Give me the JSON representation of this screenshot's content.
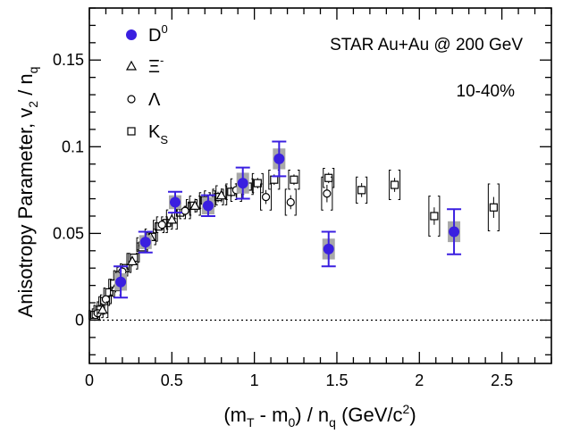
{
  "chart_data": {
    "type": "scatter",
    "xlabel": "(m_T - m_0) / n_q (GeV/c^2)",
    "ylabel": "Anisotropy Parameter, v_2 / n_q",
    "xlim": [
      0,
      2.8
    ],
    "ylim": [
      -0.025,
      0.18
    ],
    "x_ticks": [
      "0",
      "0.5",
      "1",
      "1.5",
      "2",
      "2.5"
    ],
    "y_ticks": [
      "0",
      "0.05",
      "0.1",
      "0.15"
    ],
    "grid": false,
    "zero_line": true,
    "annotations": [
      "STAR  Au+Au @ 200 GeV",
      "10-40%"
    ],
    "legend_position": "top-left",
    "series": [
      {
        "name": "D^0",
        "marker": "filled-circle",
        "color": "#3a1fe0",
        "points": [
          {
            "x": 0.19,
            "y": 0.022,
            "err": 0.009,
            "sys": 0.005
          },
          {
            "x": 0.34,
            "y": 0.045,
            "err": 0.006,
            "sys": 0.004
          },
          {
            "x": 0.52,
            "y": 0.068,
            "err": 0.006,
            "sys": 0.004
          },
          {
            "x": 0.72,
            "y": 0.066,
            "err": 0.006,
            "sys": 0.005
          },
          {
            "x": 0.93,
            "y": 0.079,
            "err": 0.009,
            "sys": 0.006
          },
          {
            "x": 1.15,
            "y": 0.093,
            "err": 0.01,
            "sys": 0.006
          },
          {
            "x": 1.45,
            "y": 0.041,
            "err": 0.01,
            "sys": 0.006
          },
          {
            "x": 2.21,
            "y": 0.051,
            "err": 0.013,
            "sys": 0.006
          }
        ]
      },
      {
        "name": "Ξ^-",
        "marker": "open-triangle",
        "color": "#000000",
        "points": [
          {
            "x": 0.08,
            "y": 0.006,
            "err": 0.002,
            "sys": 0.002
          },
          {
            "x": 0.16,
            "y": 0.019,
            "err": 0.002,
            "sys": 0.002
          },
          {
            "x": 0.26,
            "y": 0.034,
            "err": 0.002,
            "sys": 0.002
          },
          {
            "x": 0.37,
            "y": 0.048,
            "err": 0.002,
            "sys": 0.002
          },
          {
            "x": 0.5,
            "y": 0.058,
            "err": 0.003,
            "sys": 0.002
          },
          {
            "x": 0.64,
            "y": 0.066,
            "err": 0.003,
            "sys": 0.002
          },
          {
            "x": 0.8,
            "y": 0.072,
            "err": 0.003,
            "sys": 0.002
          }
        ]
      },
      {
        "name": "Λ",
        "marker": "open-circle",
        "color": "#000000",
        "points": [
          {
            "x": 0.05,
            "y": 0.004,
            "err": 0.001,
            "sys": 0.001
          },
          {
            "x": 0.1,
            "y": 0.012,
            "err": 0.001,
            "sys": 0.001
          },
          {
            "x": 0.2,
            "y": 0.028,
            "err": 0.001,
            "sys": 0.001
          },
          {
            "x": 0.32,
            "y": 0.044,
            "err": 0.002,
            "sys": 0.001
          },
          {
            "x": 0.44,
            "y": 0.055,
            "err": 0.002,
            "sys": 0.002
          },
          {
            "x": 0.58,
            "y": 0.063,
            "err": 0.002,
            "sys": 0.002
          },
          {
            "x": 0.73,
            "y": 0.07,
            "err": 0.002,
            "sys": 0.002
          },
          {
            "x": 0.89,
            "y": 0.075,
            "err": 0.003,
            "sys": 0.003
          },
          {
            "x": 1.07,
            "y": 0.071,
            "err": 0.003,
            "sys": 0.004
          },
          {
            "x": 1.22,
            "y": 0.068,
            "err": 0.003,
            "sys": 0.004
          },
          {
            "x": 1.44,
            "y": 0.073,
            "err": 0.004,
            "sys": 0.005
          }
        ]
      },
      {
        "name": "K_S",
        "marker": "open-square",
        "color": "#000000",
        "points": [
          {
            "x": 0.03,
            "y": 0.003,
            "err": 0.001,
            "sys": 0.001
          },
          {
            "x": 0.06,
            "y": 0.006,
            "err": 0.001,
            "sys": 0.001
          },
          {
            "x": 0.09,
            "y": 0.011,
            "err": 0.001,
            "sys": 0.001
          },
          {
            "x": 0.12,
            "y": 0.016,
            "err": 0.001,
            "sys": 0.001
          },
          {
            "x": 0.15,
            "y": 0.021,
            "err": 0.001,
            "sys": 0.001
          },
          {
            "x": 0.18,
            "y": 0.026,
            "err": 0.001,
            "sys": 0.001
          },
          {
            "x": 0.22,
            "y": 0.03,
            "err": 0.001,
            "sys": 0.001
          },
          {
            "x": 0.27,
            "y": 0.036,
            "err": 0.001,
            "sys": 0.001
          },
          {
            "x": 0.32,
            "y": 0.042,
            "err": 0.001,
            "sys": 0.001
          },
          {
            "x": 0.38,
            "y": 0.048,
            "err": 0.001,
            "sys": 0.001
          },
          {
            "x": 0.42,
            "y": 0.054,
            "err": 0.001,
            "sys": 0.002
          },
          {
            "x": 0.47,
            "y": 0.056,
            "err": 0.001,
            "sys": 0.002
          },
          {
            "x": 0.55,
            "y": 0.062,
            "err": 0.001,
            "sys": 0.002
          },
          {
            "x": 0.62,
            "y": 0.066,
            "err": 0.001,
            "sys": 0.002
          },
          {
            "x": 0.7,
            "y": 0.069,
            "err": 0.002,
            "sys": 0.002
          },
          {
            "x": 0.78,
            "y": 0.071,
            "err": 0.002,
            "sys": 0.002
          },
          {
            "x": 0.86,
            "y": 0.074,
            "err": 0.002,
            "sys": 0.002
          },
          {
            "x": 0.96,
            "y": 0.077,
            "err": 0.002,
            "sys": 0.002
          },
          {
            "x": 1.02,
            "y": 0.079,
            "err": 0.002,
            "sys": 0.003
          },
          {
            "x": 1.12,
            "y": 0.081,
            "err": 0.002,
            "sys": 0.003
          },
          {
            "x": 1.24,
            "y": 0.081,
            "err": 0.002,
            "sys": 0.003
          },
          {
            "x": 1.45,
            "y": 0.082,
            "err": 0.002,
            "sys": 0.003
          },
          {
            "x": 1.65,
            "y": 0.075,
            "err": 0.003,
            "sys": 0.004
          },
          {
            "x": 1.85,
            "y": 0.078,
            "err": 0.003,
            "sys": 0.005
          },
          {
            "x": 2.09,
            "y": 0.06,
            "err": 0.004,
            "sys": 0.007
          },
          {
            "x": 2.45,
            "y": 0.065,
            "err": 0.005,
            "sys": 0.008
          }
        ]
      }
    ]
  }
}
